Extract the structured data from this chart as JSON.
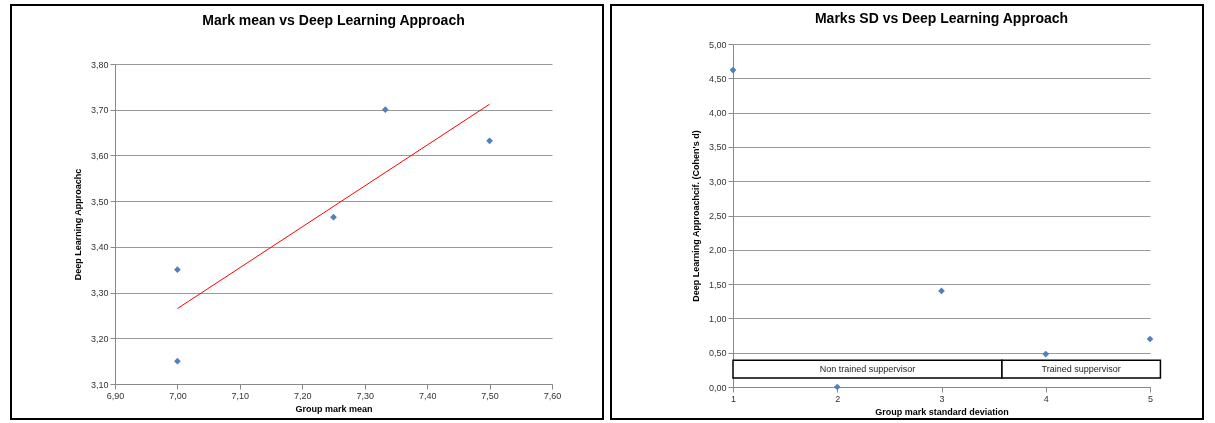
{
  "chart_data": [
    {
      "type": "scatter",
      "title": "Mark mean vs Deep Learning Approach",
      "xlabel": "Group mark mean",
      "ylabel": "Deep Learning Approachc",
      "marker": "diamond",
      "grid": "y",
      "xlim": [
        6.9,
        7.6
      ],
      "xticks": [
        {
          "value": 6.9,
          "label": "6,90"
        },
        {
          "value": 7.0,
          "label": "7,00"
        },
        {
          "value": 7.1,
          "label": "7,10"
        },
        {
          "value": 7.2,
          "label": "7,20"
        },
        {
          "value": 7.3,
          "label": "7,30"
        },
        {
          "value": 7.4,
          "label": "7,40"
        },
        {
          "value": 7.5,
          "label": "7,50"
        },
        {
          "value": 7.6,
          "label": "7,60"
        }
      ],
      "ylim": [
        3.1,
        3.8
      ],
      "yticks": [
        {
          "value": 3.1,
          "label": "3,10"
        },
        {
          "value": 3.2,
          "label": "3,20"
        },
        {
          "value": 3.3,
          "label": "3,30"
        },
        {
          "value": 3.4,
          "label": "3,40"
        },
        {
          "value": 3.5,
          "label": "3,50"
        },
        {
          "value": 3.6,
          "label": "3,60"
        },
        {
          "value": 3.7,
          "label": "3,70"
        },
        {
          "value": 3.8,
          "label": "3,80"
        }
      ],
      "series": [
        {
          "type": "scatter",
          "color": "#4f81bd",
          "x": [
            7.0,
            7.0,
            7.25,
            7.333,
            7.5
          ],
          "values": [
            3.35,
            3.15,
            3.465,
            3.7,
            3.632
          ]
        },
        {
          "type": "line",
          "color": "#ff0000",
          "marker": "none",
          "x": [
            7.0,
            7.5
          ],
          "values": [
            3.265,
            3.712
          ]
        }
      ]
    },
    {
      "type": "scatter",
      "title": "Marks SD vs Deep Learning Approach",
      "xlabel": "Group mark standard deviation",
      "ylabel": "Deep Learning Approachcif. (Cohen's d)",
      "marker": "diamond",
      "grid": "y",
      "xlim": [
        1,
        5
      ],
      "xticks": [
        1,
        2,
        3,
        4,
        5
      ],
      "ylim": [
        0,
        5
      ],
      "yticks": [
        {
          "value": 0,
          "label": "0,00"
        },
        {
          "value": 0.5,
          "label": "0,50"
        },
        {
          "value": 1,
          "label": "1,00"
        },
        {
          "value": 1.5,
          "label": "1,50"
        },
        {
          "value": 2,
          "label": "2,00"
        },
        {
          "value": 2.5,
          "label": "2,50"
        },
        {
          "value": 3,
          "label": "3,00"
        },
        {
          "value": 3.5,
          "label": "3,50"
        },
        {
          "value": 4,
          "label": "4,00"
        },
        {
          "value": 4.5,
          "label": "4,50"
        },
        {
          "value": 5,
          "label": "5,00"
        }
      ],
      "annotations": [
        "Non trained suppervisor",
        "Trained suppervisor"
      ],
      "series": [
        {
          "type": "scatter",
          "color": "#4f81bd",
          "x": [
            1,
            2,
            3,
            4,
            5
          ],
          "values": [
            4.62,
            0,
            1.4,
            0.48,
            0.7
          ]
        }
      ]
    }
  ]
}
